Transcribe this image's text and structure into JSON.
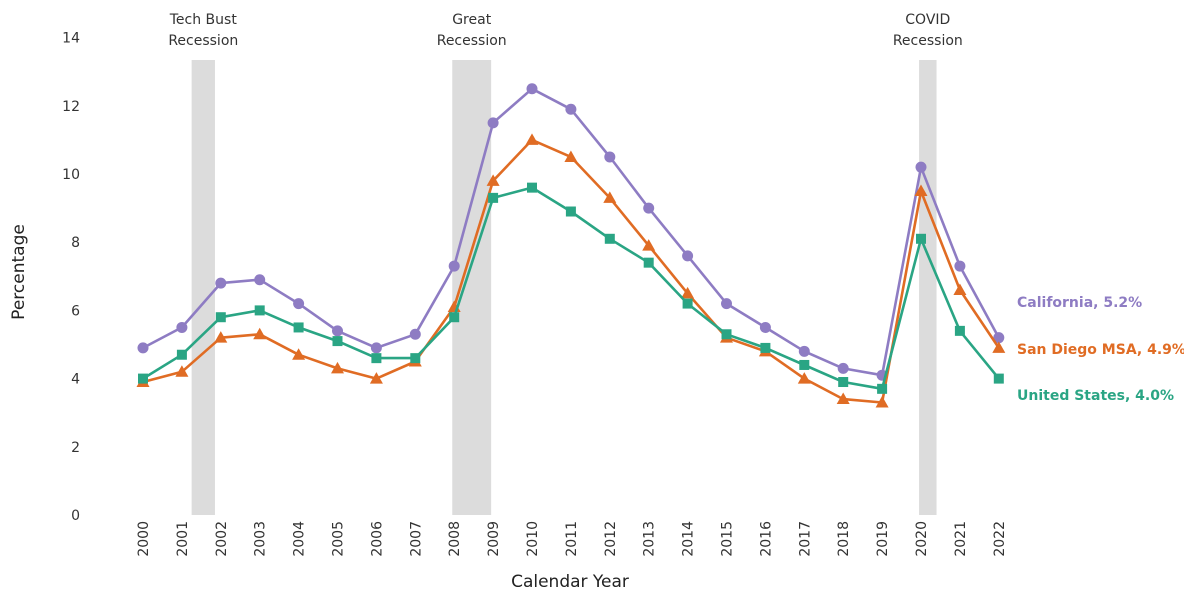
{
  "chart_data": {
    "type": "line",
    "xlabel": "Calendar Year",
    "ylabel": "Percentage",
    "ylim": [
      0,
      14
    ],
    "yticks": [
      "0",
      "2",
      "4",
      "6",
      "8",
      "10",
      "12",
      "14"
    ],
    "categories": [
      "2000",
      "2001",
      "2002",
      "2003",
      "2004",
      "2005",
      "2006",
      "2007",
      "2008",
      "2009",
      "2010",
      "2011",
      "2012",
      "2013",
      "2014",
      "2015",
      "2016",
      "2017",
      "2018",
      "2019",
      "2020",
      "2021",
      "2022"
    ],
    "grid": false,
    "series": [
      {
        "name": "California",
        "end_label": "California, 5.2%",
        "color": "#8e7cc3",
        "marker": "circle",
        "values": [
          4.9,
          5.5,
          6.8,
          6.9,
          6.2,
          5.4,
          4.9,
          5.3,
          7.3,
          11.5,
          12.5,
          11.9,
          10.5,
          9.0,
          7.6,
          6.2,
          5.5,
          4.8,
          4.3,
          4.1,
          10.2,
          7.3,
          5.2
        ]
      },
      {
        "name": "San Diego MSA",
        "end_label": "San Diego MSA, 4.9%",
        "color": "#e06c24",
        "marker": "triangle",
        "values": [
          3.9,
          4.2,
          5.2,
          5.3,
          4.7,
          4.3,
          4.0,
          4.5,
          6.1,
          9.8,
          11.0,
          10.5,
          9.3,
          7.9,
          6.5,
          5.2,
          4.8,
          4.0,
          3.4,
          3.3,
          9.5,
          6.6,
          4.9
        ]
      },
      {
        "name": "United States",
        "end_label": "United States, 4.0%",
        "color": "#2aa584",
        "marker": "square",
        "values": [
          4.0,
          4.7,
          5.8,
          6.0,
          5.5,
          5.1,
          4.6,
          4.6,
          5.8,
          9.3,
          9.6,
          8.9,
          8.1,
          7.4,
          6.2,
          5.3,
          4.9,
          4.4,
          3.9,
          3.7,
          8.1,
          5.4,
          4.0
        ]
      }
    ],
    "recessions": [
      {
        "label_lines": [
          "Tech Bust",
          "Recession"
        ],
        "start_year": 2001.25,
        "end_year": 2001.85
      },
      {
        "label_lines": [
          "Great",
          "Recession"
        ],
        "start_year": 2007.95,
        "end_year": 2008.95
      },
      {
        "label_lines": [
          "COVID",
          "Recession"
        ],
        "start_year": 2019.95,
        "end_year": 2020.4
      }
    ],
    "recession_color": "#dcdcdc"
  }
}
